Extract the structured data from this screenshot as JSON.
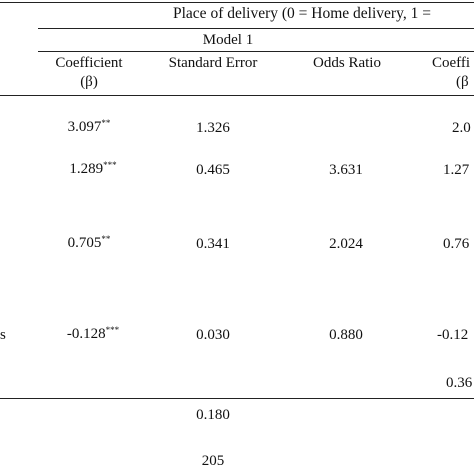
{
  "header": {
    "dependent_variable": "Place of delivery (0 = Home delivery, 1 =",
    "model_label": "Model 1",
    "columns": [
      {
        "line1": "Coefficient",
        "line2": "(β)"
      },
      {
        "line1": "Standard Error",
        "line2": ""
      },
      {
        "line1": "Odds Ratio",
        "line2": ""
      },
      {
        "line1": "Coeffi",
        "line2": "(β"
      }
    ]
  },
  "row_label_fragment": "s",
  "rows": [
    {
      "coef": "3.097",
      "coef_sig": "**",
      "se": "1.326",
      "or": "",
      "coef2": "2.0"
    },
    {
      "coef": "1.289",
      "coef_sig": "***",
      "se": "0.465",
      "or": "3.631",
      "coef2": "1.27"
    },
    {
      "coef": "0.705",
      "coef_sig": "**",
      "se": "0.341",
      "or": "2.024",
      "coef2": "0.76"
    },
    {
      "coef": "-0.128",
      "coef_sig": "***",
      "se": "0.030",
      "or": "0.880",
      "coef2": "-0.12"
    },
    {
      "coef": "",
      "coef_sig": "",
      "se": "",
      "or": "",
      "coef2": "0.36"
    }
  ],
  "footer": {
    "stat1": "0.180",
    "stat2": "205"
  }
}
